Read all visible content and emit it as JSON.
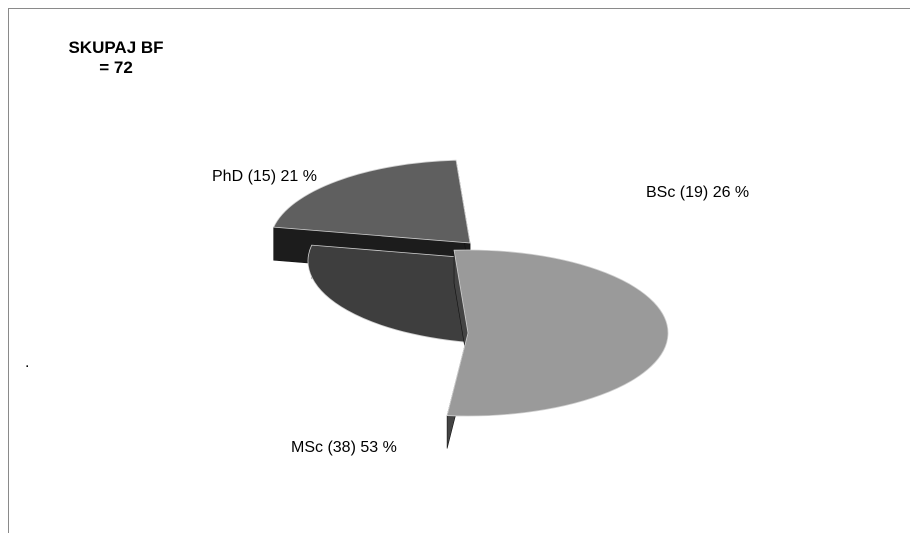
{
  "chart_data": {
    "type": "pie",
    "style": "3d-exploded",
    "title": [
      "SKUPAJ BF",
      "= 72"
    ],
    "slices": [
      {
        "label": "PhD (15) 21 %",
        "count": 15,
        "percent": 21,
        "color": "#5f5f5f",
        "side_color": "#1c1c1c"
      },
      {
        "label": "BSc (19) 26 %",
        "count": 19,
        "percent": 26,
        "color": "#3e3e3e",
        "side_color": "#161616"
      },
      {
        "label": "MSc (38) 53 %",
        "count": 38,
        "percent": 53,
        "color": "#9a9a9a",
        "side_color": "#444444"
      }
    ],
    "annotations": [
      "."
    ]
  }
}
